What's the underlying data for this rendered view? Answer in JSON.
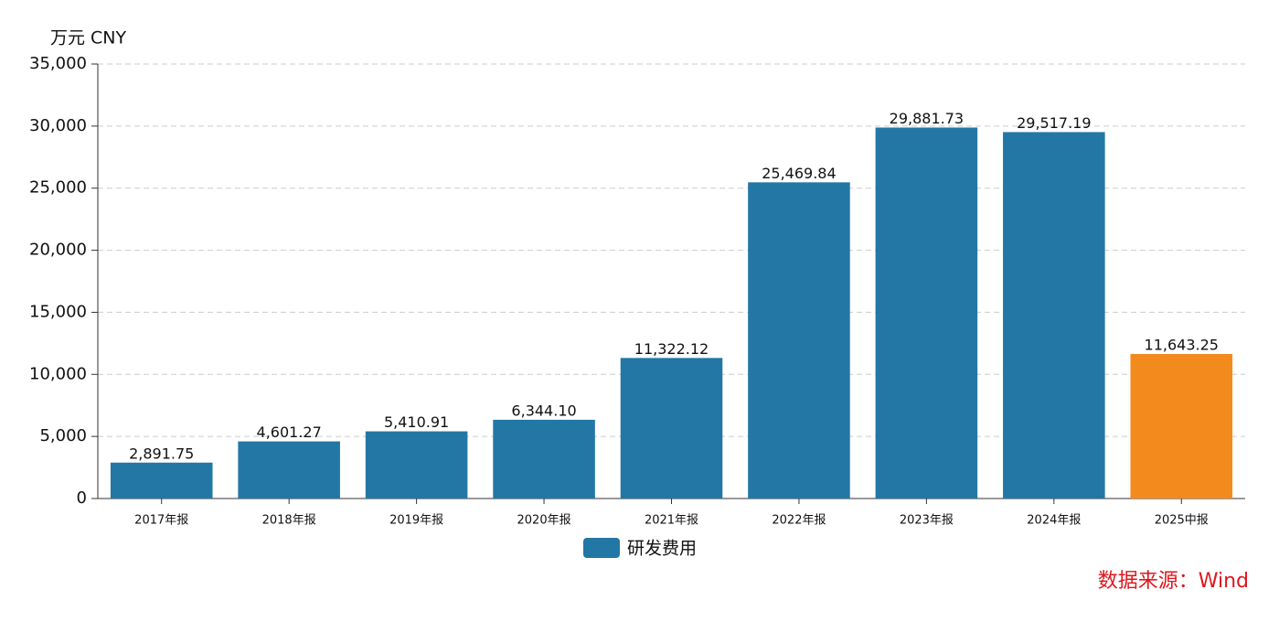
{
  "chart_data": {
    "type": "bar",
    "y_label": "万元  CNY",
    "categories": [
      "2017年报",
      "2018年报",
      "2019年报",
      "2020年报",
      "2021年报",
      "2022年报",
      "2023年报",
      "2024年报",
      "2025中报"
    ],
    "series": [
      {
        "name": "研发费用",
        "color": "#2377a4",
        "colors": [
          "#2377a4",
          "#2377a4",
          "#2377a4",
          "#2377a4",
          "#2377a4",
          "#2377a4",
          "#2377a4",
          "#2377a4",
          "#f28a1e"
        ],
        "values": [
          2891.75,
          4601.27,
          5410.91,
          6344.1,
          11322.12,
          25469.84,
          29881.73,
          29517.19,
          11643.25
        ],
        "value_labels": [
          "2,891.75",
          "4,601.27",
          "5,410.91",
          "6,344.10",
          "11,322.12",
          "25,469.84",
          "29,881.73",
          "29,517.19",
          "11,643.25"
        ]
      }
    ],
    "ylim": [
      0,
      35000
    ],
    "yticks": [
      0,
      {
        "value": 5000,
        "label": "5,000"
      },
      {
        "value": 10000,
        "label": "10,000"
      },
      {
        "value": 15000,
        "label": "15,000"
      },
      {
        "value": 20000,
        "label": "20,000"
      },
      {
        "value": 25000,
        "label": "25,000"
      },
      {
        "value": 30000,
        "label": "30,000"
      },
      {
        "value": 35000,
        "label": "35,000"
      }
    ],
    "grid": true,
    "legend": "bottom",
    "source": "数据来源：Wind"
  }
}
